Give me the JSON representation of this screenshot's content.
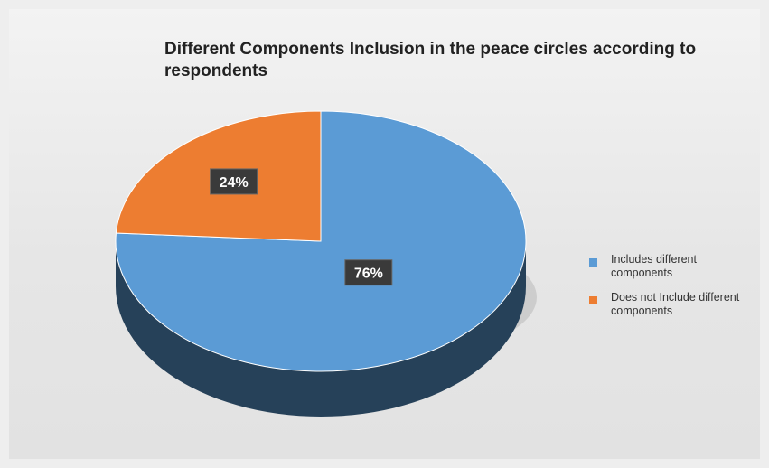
{
  "chart_data": {
    "type": "pie",
    "title": "Different Components Inclusion in the peace circles according to respondents",
    "categories": [
      "Includes different components",
      "Does not Include different components"
    ],
    "values": [
      76,
      24
    ],
    "labels": [
      "76%",
      "24%"
    ],
    "colors": [
      "#5b9bd5",
      "#ed7d31"
    ],
    "legend_position": "right"
  }
}
